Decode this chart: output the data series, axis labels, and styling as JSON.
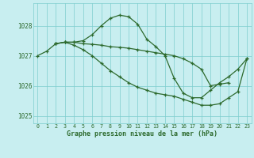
{
  "title": "Graphe pression niveau de la mer (hPa)",
  "bg_color": "#c8eef0",
  "grid_color": "#7ecece",
  "line_color": "#2d6a2d",
  "xlim": [
    -0.5,
    23.5
  ],
  "ylim": [
    1024.75,
    1028.75
  ],
  "yticks": [
    1025,
    1026,
    1027,
    1028
  ],
  "xticks": [
    0,
    1,
    2,
    3,
    4,
    5,
    6,
    7,
    8,
    9,
    10,
    11,
    12,
    13,
    14,
    15,
    16,
    17,
    18,
    19,
    20,
    21,
    22,
    23
  ],
  "series": [
    {
      "x": [
        0,
        1,
        2,
        3,
        4,
        5,
        6,
        7,
        8,
        9,
        10,
        11,
        12,
        13,
        14,
        15,
        16,
        17,
        18,
        19,
        20,
        21,
        22,
        23
      ],
      "y": [
        1027.0,
        1027.15,
        1027.4,
        1027.45,
        1027.45,
        1027.5,
        1027.7,
        1028.0,
        1028.25,
        1028.35,
        1028.3,
        1028.05,
        1027.55,
        1027.3,
        1027.0,
        1026.25,
        1025.75,
        1025.6,
        1025.6,
        1025.85,
        1026.1,
        1026.3,
        1026.55,
        1026.9
      ]
    },
    {
      "x": [
        2,
        3,
        4,
        5,
        6,
        7,
        8,
        9,
        10,
        11,
        12,
        13,
        14,
        15,
        16,
        17,
        18,
        19,
        20,
        21
      ],
      "y": [
        1027.4,
        1027.45,
        1027.45,
        1027.4,
        1027.38,
        1027.35,
        1027.3,
        1027.28,
        1027.25,
        1027.2,
        1027.15,
        1027.1,
        1027.05,
        1027.0,
        1026.9,
        1026.75,
        1026.55,
        1026.0,
        1026.05,
        1026.1
      ]
    },
    {
      "x": [
        2,
        3,
        4,
        5,
        6,
        7,
        8,
        9,
        10,
        11,
        12,
        13,
        14,
        15,
        16,
        17,
        18,
        19,
        20,
        21,
        22,
        23
      ],
      "y": [
        1027.4,
        1027.45,
        1027.35,
        1027.2,
        1027.0,
        1026.75,
        1026.5,
        1026.3,
        1026.1,
        1025.95,
        1025.85,
        1025.75,
        1025.7,
        1025.65,
        1025.55,
        1025.45,
        1025.35,
        1025.35,
        1025.4,
        1025.6,
        1025.8,
        1026.9
      ]
    }
  ]
}
